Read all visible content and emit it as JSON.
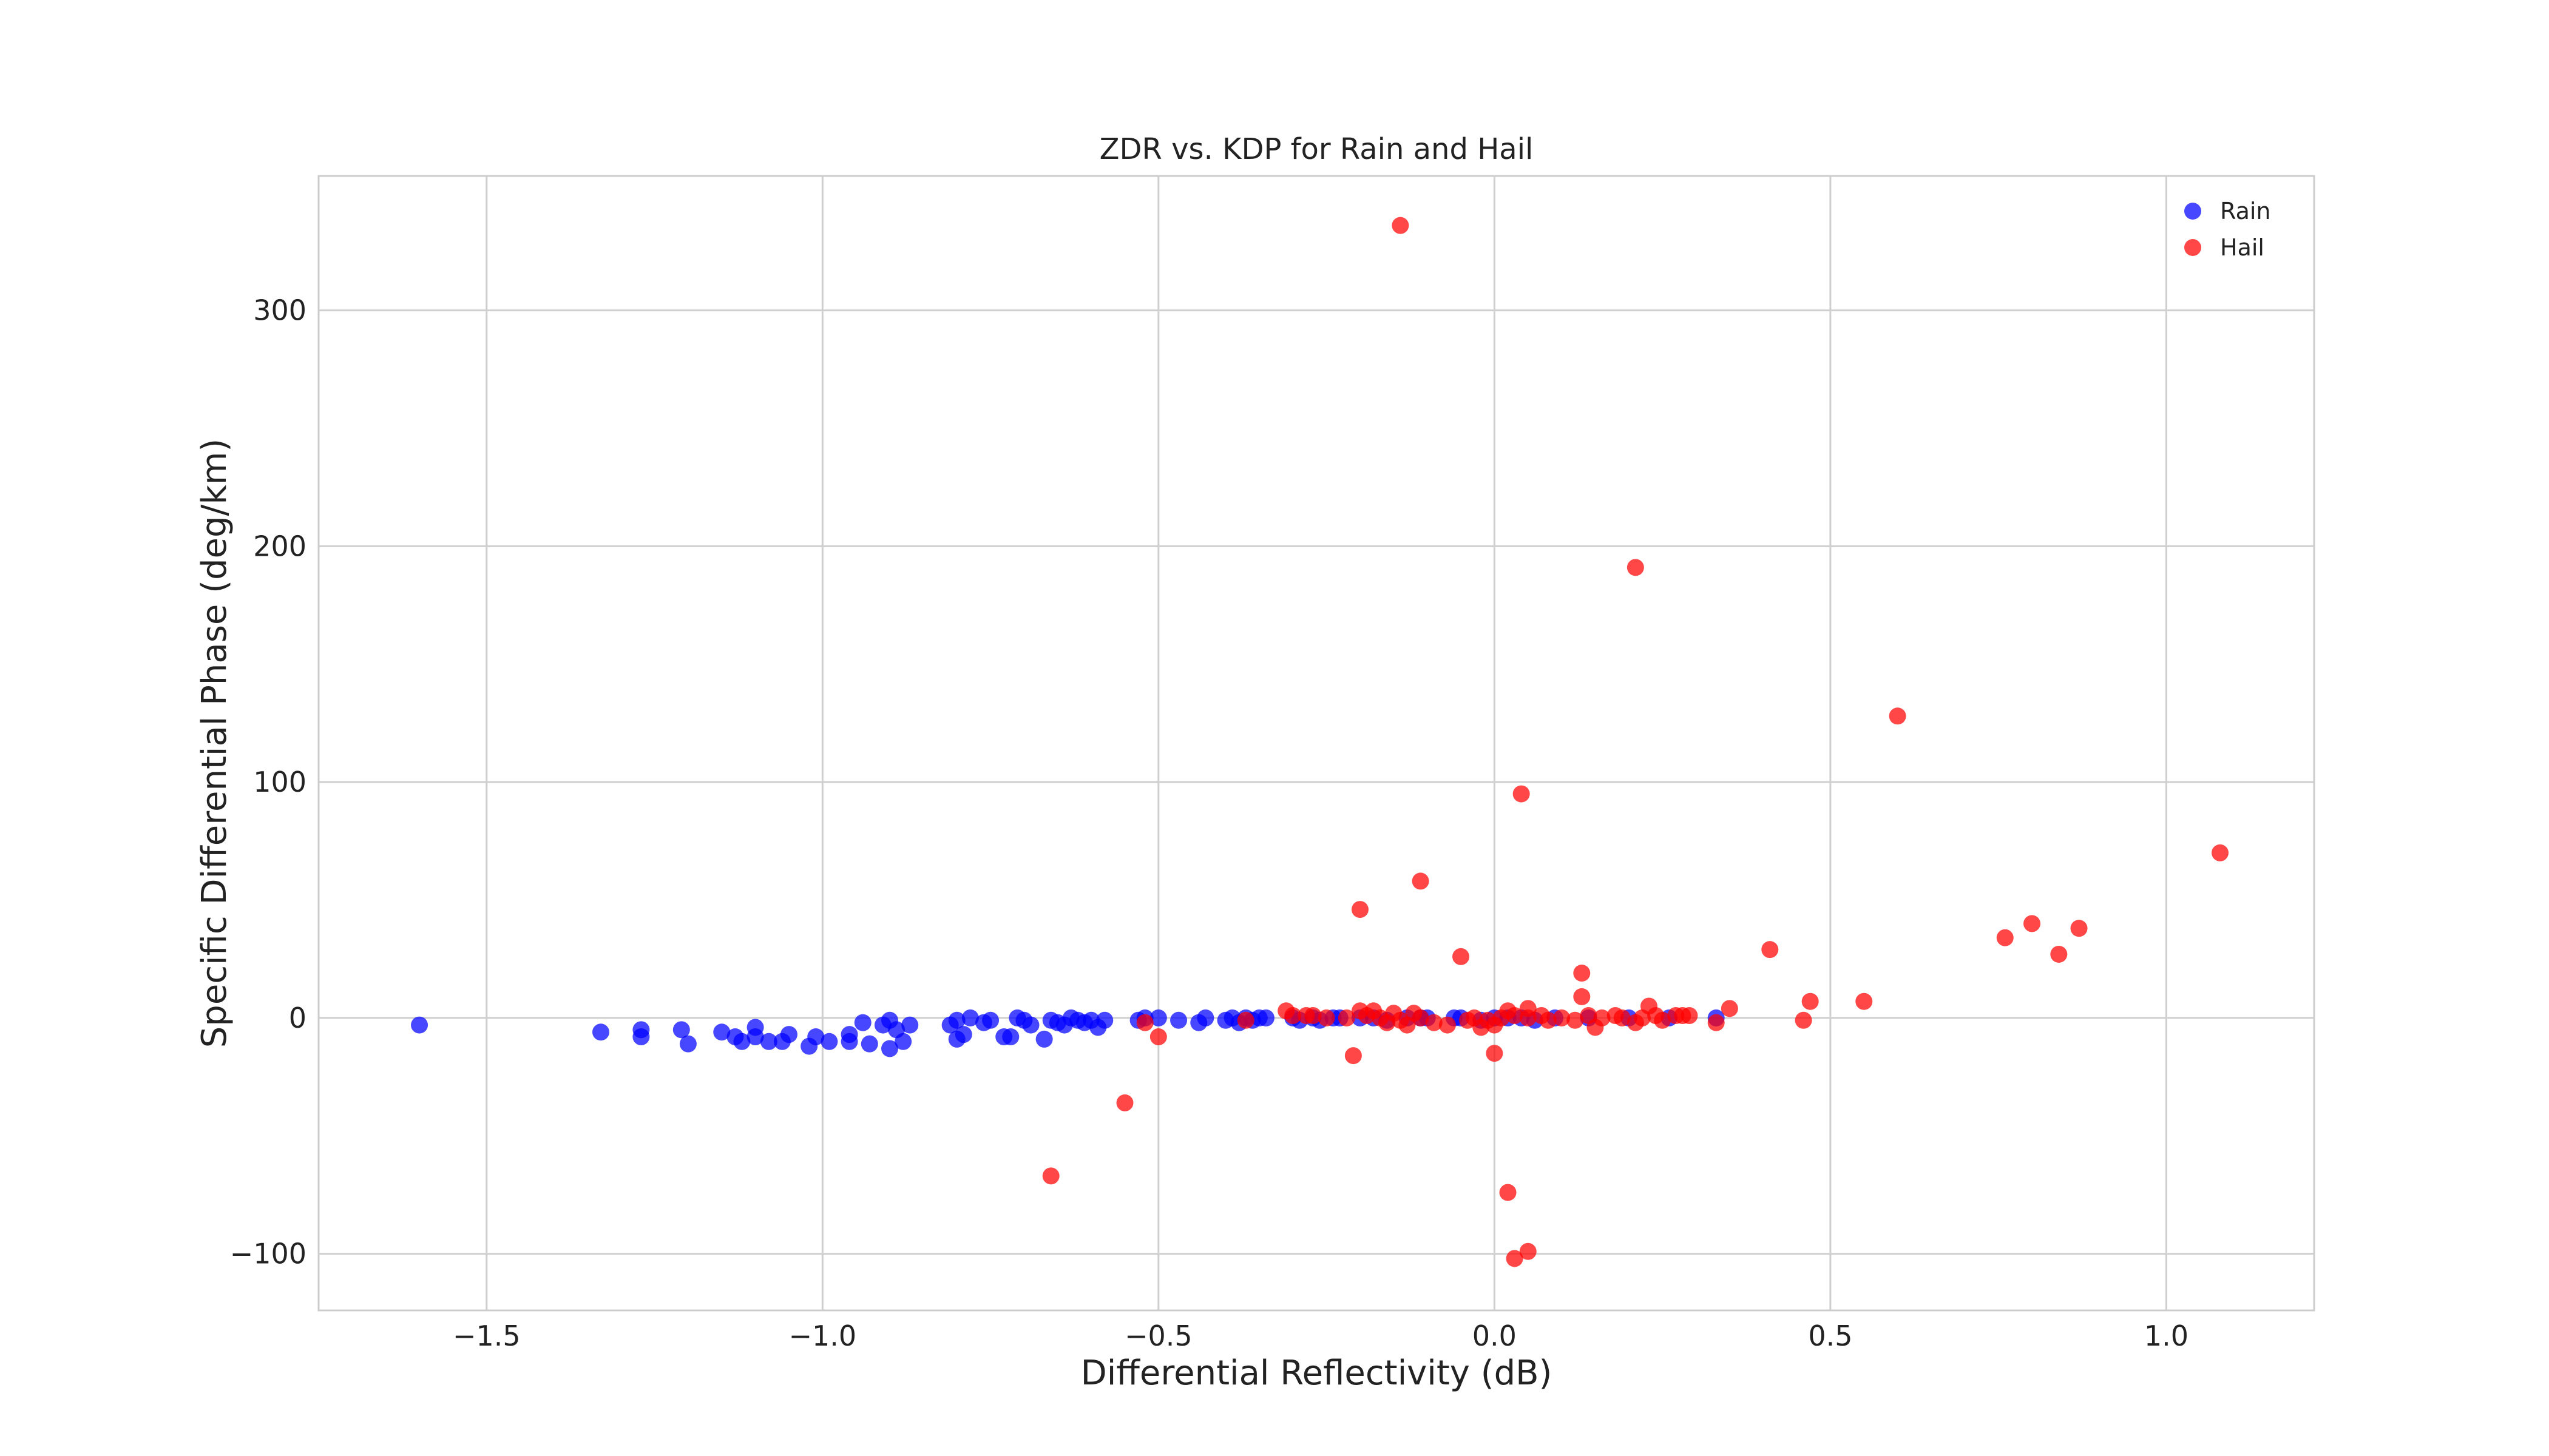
{
  "chart_data": {
    "type": "scatter",
    "title": "ZDR vs. KDP for Rain and Hail",
    "xlabel": "Differential Reflectivity (dB)",
    "ylabel": "Specific Differential Phase (deg/km)",
    "xlim": [
      -1.75,
      1.22
    ],
    "ylim": [
      -124,
      357
    ],
    "xticks": [
      -1.5,
      -1.0,
      -0.5,
      0.0,
      0.5,
      1.0
    ],
    "xtick_labels": [
      "−1.5",
      "−1.0",
      "−0.5",
      "0.0",
      "0.5",
      "1.0"
    ],
    "yticks": [
      -100,
      0,
      100,
      200,
      300
    ],
    "ytick_labels": [
      "−100",
      "0",
      "100",
      "200",
      "300"
    ],
    "grid": true,
    "legend_position": "top-right",
    "series": [
      {
        "name": "Rain",
        "color": "#0000ff",
        "points": [
          [
            -1.6,
            -3
          ],
          [
            -1.33,
            -6
          ],
          [
            -1.27,
            -5
          ],
          [
            -1.27,
            -8
          ],
          [
            -1.21,
            -5
          ],
          [
            -1.2,
            -11
          ],
          [
            -1.15,
            -6
          ],
          [
            -1.13,
            -8
          ],
          [
            -1.12,
            -10
          ],
          [
            -1.1,
            -4
          ],
          [
            -1.1,
            -8
          ],
          [
            -1.08,
            -10
          ],
          [
            -1.06,
            -10
          ],
          [
            -1.05,
            -7
          ],
          [
            -1.02,
            -12
          ],
          [
            -1.01,
            -8
          ],
          [
            -0.99,
            -10
          ],
          [
            -0.96,
            -10
          ],
          [
            -0.96,
            -7
          ],
          [
            -0.94,
            -2
          ],
          [
            -0.93,
            -11
          ],
          [
            -0.91,
            -3
          ],
          [
            -0.9,
            -1
          ],
          [
            -0.9,
            -13
          ],
          [
            -0.89,
            -5
          ],
          [
            -0.88,
            -10
          ],
          [
            -0.87,
            -3
          ],
          [
            -0.81,
            -3
          ],
          [
            -0.8,
            -9
          ],
          [
            -0.8,
            -1
          ],
          [
            -0.79,
            -7
          ],
          [
            -0.78,
            0
          ],
          [
            -0.76,
            -2
          ],
          [
            -0.75,
            -1
          ],
          [
            -0.73,
            -8
          ],
          [
            -0.72,
            -8
          ],
          [
            -0.71,
            0
          ],
          [
            -0.7,
            -1
          ],
          [
            -0.69,
            -3
          ],
          [
            -0.67,
            -9
          ],
          [
            -0.66,
            -1
          ],
          [
            -0.65,
            -2
          ],
          [
            -0.64,
            -3
          ],
          [
            -0.63,
            0
          ],
          [
            -0.62,
            -1
          ],
          [
            -0.61,
            -2
          ],
          [
            -0.6,
            -1
          ],
          [
            -0.59,
            -4
          ],
          [
            -0.58,
            -1
          ],
          [
            -0.53,
            -1
          ],
          [
            -0.52,
            0
          ],
          [
            -0.5,
            0
          ],
          [
            -0.47,
            -1
          ],
          [
            -0.44,
            -2
          ],
          [
            -0.43,
            0
          ],
          [
            -0.4,
            -1
          ],
          [
            -0.39,
            0
          ],
          [
            -0.38,
            -2
          ],
          [
            -0.37,
            0
          ],
          [
            -0.36,
            -1
          ],
          [
            -0.35,
            0
          ],
          [
            -0.34,
            0
          ],
          [
            -0.3,
            0
          ],
          [
            -0.29,
            -1
          ],
          [
            -0.27,
            0
          ],
          [
            -0.26,
            -1
          ],
          [
            -0.24,
            0
          ],
          [
            -0.23,
            0
          ],
          [
            -0.2,
            0
          ],
          [
            -0.18,
            0
          ],
          [
            -0.16,
            -1
          ],
          [
            -0.13,
            0
          ],
          [
            -0.11,
            0
          ],
          [
            -0.1,
            0
          ],
          [
            -0.06,
            0
          ],
          [
            -0.05,
            0
          ],
          [
            -0.02,
            -1
          ],
          [
            0.0,
            0
          ],
          [
            0.02,
            0
          ],
          [
            0.04,
            0
          ],
          [
            0.06,
            -1
          ],
          [
            0.09,
            0
          ],
          [
            0.14,
            0
          ],
          [
            0.2,
            0
          ],
          [
            0.26,
            0
          ],
          [
            0.33,
            0
          ]
        ]
      },
      {
        "name": "Hail",
        "color": "#ff0000",
        "points": [
          [
            -0.14,
            336
          ],
          [
            0.21,
            191
          ],
          [
            0.6,
            128
          ],
          [
            0.04,
            95
          ],
          [
            1.08,
            70
          ],
          [
            -0.11,
            58
          ],
          [
            -0.2,
            46
          ],
          [
            0.8,
            40
          ],
          [
            0.87,
            38
          ],
          [
            0.76,
            34
          ],
          [
            0.41,
            29
          ],
          [
            0.84,
            27
          ],
          [
            -0.05,
            26
          ],
          [
            0.13,
            19
          ],
          [
            0.13,
            9
          ],
          [
            0.47,
            7
          ],
          [
            0.55,
            7
          ],
          [
            0.35,
            4
          ],
          [
            0.23,
            5
          ],
          [
            0.05,
            4
          ],
          [
            0.02,
            3
          ],
          [
            -0.31,
            3
          ],
          [
            -0.2,
            3
          ],
          [
            -0.18,
            3
          ],
          [
            -0.15,
            2
          ],
          [
            -0.12,
            2
          ],
          [
            -0.3,
            1
          ],
          [
            -0.28,
            1
          ],
          [
            -0.25,
            0
          ],
          [
            -0.22,
            0
          ],
          [
            -0.19,
            1
          ],
          [
            -0.17,
            0
          ],
          [
            -0.16,
            -2
          ],
          [
            -0.14,
            -1
          ],
          [
            -0.13,
            -3
          ],
          [
            -0.11,
            0
          ],
          [
            -0.09,
            -2
          ],
          [
            -0.07,
            -3
          ],
          [
            -0.04,
            -1
          ],
          [
            -0.03,
            0
          ],
          [
            -0.01,
            -1
          ],
          [
            -0.02,
            -4
          ],
          [
            0.0,
            -3
          ],
          [
            0.01,
            0
          ],
          [
            0.03,
            1
          ],
          [
            0.05,
            0
          ],
          [
            0.07,
            1
          ],
          [
            0.08,
            -1
          ],
          [
            0.1,
            0
          ],
          [
            0.12,
            -1
          ],
          [
            0.14,
            1
          ],
          [
            0.15,
            -4
          ],
          [
            0.16,
            0
          ],
          [
            0.18,
            1
          ],
          [
            0.19,
            0
          ],
          [
            0.21,
            -2
          ],
          [
            0.22,
            0
          ],
          [
            0.24,
            1
          ],
          [
            0.25,
            -1
          ],
          [
            0.27,
            1
          ],
          [
            0.28,
            1
          ],
          [
            0.29,
            1
          ],
          [
            0.33,
            -2
          ],
          [
            -0.37,
            -1
          ],
          [
            -0.27,
            1
          ],
          [
            -0.52,
            -2
          ],
          [
            -0.5,
            -8
          ],
          [
            0.46,
            -1
          ],
          [
            -0.21,
            -16
          ],
          [
            0.0,
            -15
          ],
          [
            -0.55,
            -36
          ],
          [
            -0.66,
            -67
          ],
          [
            0.02,
            -74
          ],
          [
            0.05,
            -99
          ],
          [
            0.03,
            -102
          ]
        ]
      }
    ]
  }
}
